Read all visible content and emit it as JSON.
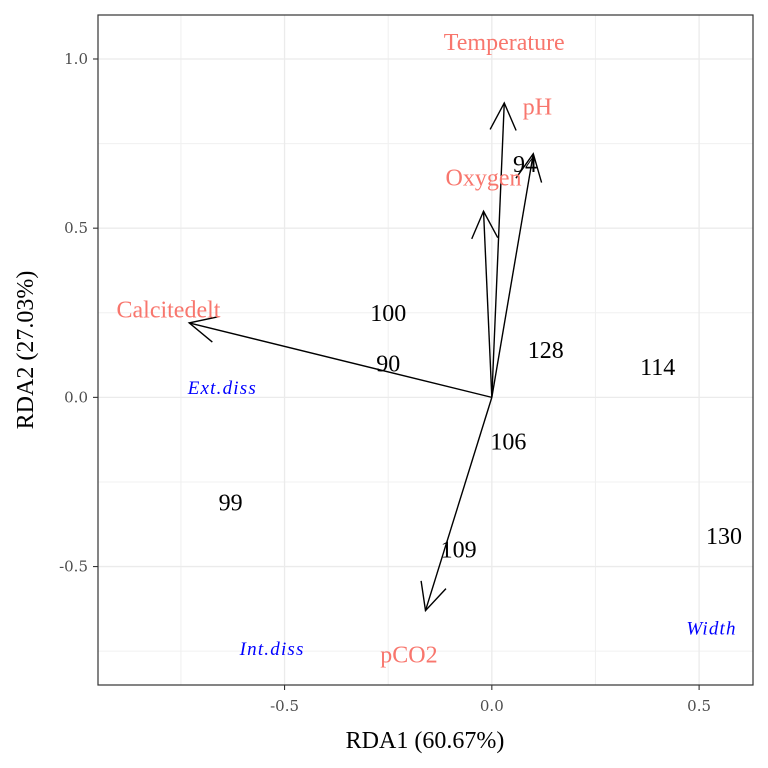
{
  "chart_data": {
    "type": "scatter",
    "subtype": "rda-triplot",
    "title": "",
    "xlabel": "RDA1 (60.67%)",
    "ylabel": "RDA2 (27.03%)",
    "xlim": [
      -0.95,
      0.63
    ],
    "ylim": [
      -0.85,
      1.13
    ],
    "xticks": [
      -0.5,
      0.0,
      0.5
    ],
    "xtick_labels": [
      "-0.5",
      "0.0",
      "0.5"
    ],
    "yticks": [
      -0.5,
      0.0,
      0.5,
      1.0
    ],
    "ytick_labels": [
      "-0.5",
      "0.0",
      "0.5",
      "1.0"
    ],
    "grid": true,
    "env_color": "#f8766d",
    "species_color": "#0000ff",
    "site_color": "#000000",
    "sites": [
      {
        "label": "94",
        "x": 0.08,
        "y": 0.69
      },
      {
        "label": "100",
        "x": -0.25,
        "y": 0.25
      },
      {
        "label": "90",
        "x": -0.25,
        "y": 0.1
      },
      {
        "label": "128",
        "x": 0.13,
        "y": 0.14
      },
      {
        "label": "114",
        "x": 0.4,
        "y": 0.09
      },
      {
        "label": "106",
        "x": 0.04,
        "y": -0.13
      },
      {
        "label": "99",
        "x": -0.63,
        "y": -0.31
      },
      {
        "label": "109",
        "x": -0.08,
        "y": -0.45
      },
      {
        "label": "130",
        "x": 0.56,
        "y": -0.41
      }
    ],
    "arrows": [
      {
        "label": "Temperature",
        "x": 0.03,
        "y": 0.87,
        "label_x": 0.03,
        "label_y": 1.05
      },
      {
        "label": "pH",
        "x": 0.1,
        "y": 0.72,
        "label_x": 0.11,
        "label_y": 0.86
      },
      {
        "label": "Oxygen",
        "x": -0.02,
        "y": 0.55,
        "label_x": -0.02,
        "label_y": 0.65
      },
      {
        "label": "Calcitedelt",
        "x": -0.73,
        "y": 0.22,
        "label_x": -0.78,
        "label_y": 0.26
      },
      {
        "label": "pCO2",
        "x": -0.16,
        "y": -0.63,
        "label_x": -0.2,
        "label_y": -0.76
      }
    ],
    "species": [
      {
        "label": "Ext.diss",
        "x": -0.65,
        "y": 0.03
      },
      {
        "label": "Int.diss",
        "x": -0.53,
        "y": -0.74
      },
      {
        "label": "Width",
        "x": 0.53,
        "y": -0.68
      }
    ]
  }
}
